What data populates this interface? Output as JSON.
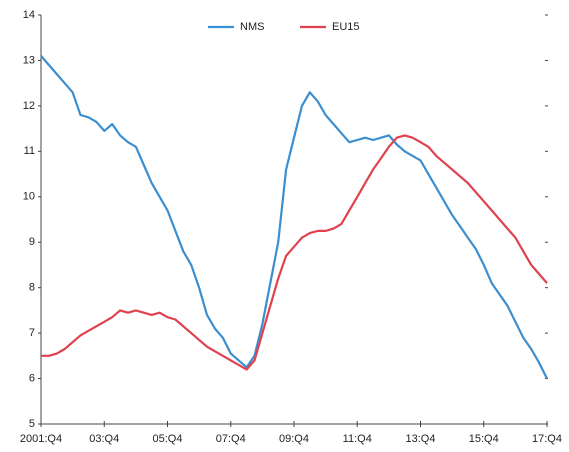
{
  "chart_data": {
    "type": "line",
    "categories": [
      "2001:Q4",
      null,
      null,
      null,
      null,
      null,
      null,
      null,
      "03:Q4",
      null,
      null,
      null,
      null,
      null,
      null,
      null,
      "05:Q4",
      null,
      null,
      null,
      null,
      null,
      null,
      null,
      "07:Q4",
      null,
      null,
      null,
      null,
      null,
      null,
      null,
      "09:Q4",
      null,
      null,
      null,
      null,
      null,
      null,
      null,
      "11:Q4",
      null,
      null,
      null,
      null,
      null,
      null,
      null,
      "13:Q4",
      null,
      null,
      null,
      null,
      null,
      null,
      null,
      "15:Q4",
      null,
      null,
      null,
      null,
      null,
      null,
      null,
      "17:Q4"
    ],
    "series": [
      {
        "name": "NMS",
        "color": "#3b8fd0",
        "values": [
          13.1,
          12.9,
          12.7,
          12.5,
          12.3,
          11.8,
          11.75,
          11.65,
          11.45,
          11.6,
          11.35,
          11.2,
          11.1,
          10.7,
          10.3,
          10.0,
          9.7,
          9.25,
          8.8,
          8.5,
          8.0,
          7.4,
          7.1,
          6.9,
          6.55,
          6.4,
          6.25,
          6.5,
          7.2,
          8.1,
          9.0,
          10.6,
          11.3,
          12.0,
          12.3,
          12.1,
          11.8,
          11.6,
          11.4,
          11.2,
          11.25,
          11.3,
          11.25,
          11.3,
          11.35,
          11.15,
          11.0,
          10.9,
          10.8,
          10.5,
          10.2,
          9.9,
          9.6,
          9.35,
          9.1,
          8.85,
          8.5,
          8.1,
          7.85,
          7.6,
          7.25,
          6.9,
          6.65,
          6.35,
          6.0
        ]
      },
      {
        "name": "EU15",
        "color": "#e0414f",
        "values": [
          6.5,
          6.5,
          6.55,
          6.65,
          6.8,
          6.95,
          7.05,
          7.15,
          7.25,
          7.35,
          7.5,
          7.45,
          7.5,
          7.45,
          7.4,
          7.45,
          7.35,
          7.3,
          7.15,
          7.0,
          6.85,
          6.7,
          6.6,
          6.5,
          6.4,
          6.3,
          6.2,
          6.4,
          7.0,
          7.6,
          8.2,
          8.7,
          8.9,
          9.1,
          9.2,
          9.25,
          9.25,
          9.3,
          9.4,
          9.7,
          10.0,
          10.3,
          10.6,
          10.85,
          11.1,
          11.3,
          11.35,
          11.3,
          11.2,
          11.1,
          10.9,
          10.75,
          10.6,
          10.45,
          10.3,
          10.1,
          9.9,
          9.7,
          9.5,
          9.3,
          9.1,
          8.8,
          8.5,
          8.3,
          8.1
        ]
      }
    ],
    "ylim": [
      5,
      14
    ],
    "yticks": [
      5,
      6,
      7,
      8,
      9,
      10,
      11,
      12,
      13,
      14
    ]
  }
}
